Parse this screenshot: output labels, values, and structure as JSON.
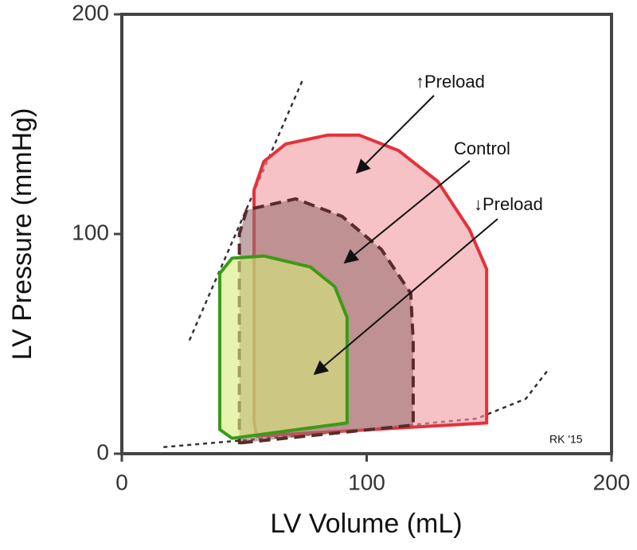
{
  "chart_data": {
    "type": "line",
    "xlabel": "LV Volume (mL)",
    "ylabel": "LV Pressure (mmHg)",
    "xlim": [
      0,
      200
    ],
    "ylim": [
      0,
      200
    ],
    "xticks": [
      0,
      100,
      200
    ],
    "yticks": [
      0,
      100,
      200
    ],
    "series": [
      {
        "x": [
          27.6,
          73.8
        ],
        "y": [
          51.6,
          170
        ],
        "color": "#333333",
        "linestyle": "dotted",
        "closed": false
      },
      {
        "x": [
          17,
          80,
          145,
          165,
          174
        ],
        "y": [
          3,
          9,
          16,
          25,
          38
        ],
        "color": "#333333",
        "linestyle": "dotted",
        "closed": false
      },
      {
        "x": [
          55,
          149,
          149,
          142,
          129,
          113,
          97,
          84,
          67,
          58,
          54,
          54
        ],
        "y": [
          8,
          14,
          84,
          102,
          124,
          138,
          145,
          145,
          141,
          133,
          120,
          15
        ],
        "color": "#e5313b",
        "fill": "#f29a9f",
        "linestyle": "solid",
        "closed": true
      },
      {
        "x": [
          49,
          119,
          119,
          118,
          106,
          90,
          71,
          51,
          48,
          48
        ],
        "y": [
          5,
          13,
          51,
          73,
          93,
          108,
          116,
          111,
          100,
          5
        ],
        "color": "#5b2a2c",
        "fill": "#9a7070",
        "linestyle": "dashed",
        "closed": true
      },
      {
        "x": [
          45,
          92,
          92,
          87,
          77,
          58,
          45,
          40,
          40
        ],
        "y": [
          7,
          14,
          62,
          76,
          85,
          90,
          89,
          82,
          11
        ],
        "color": "#3c9a18",
        "fill": "#d6ec7a",
        "linestyle": "solid",
        "closed": true
      }
    ],
    "annotations": [
      "↑Preload",
      "Control",
      "↓Preload",
      "RK '15"
    ]
  }
}
